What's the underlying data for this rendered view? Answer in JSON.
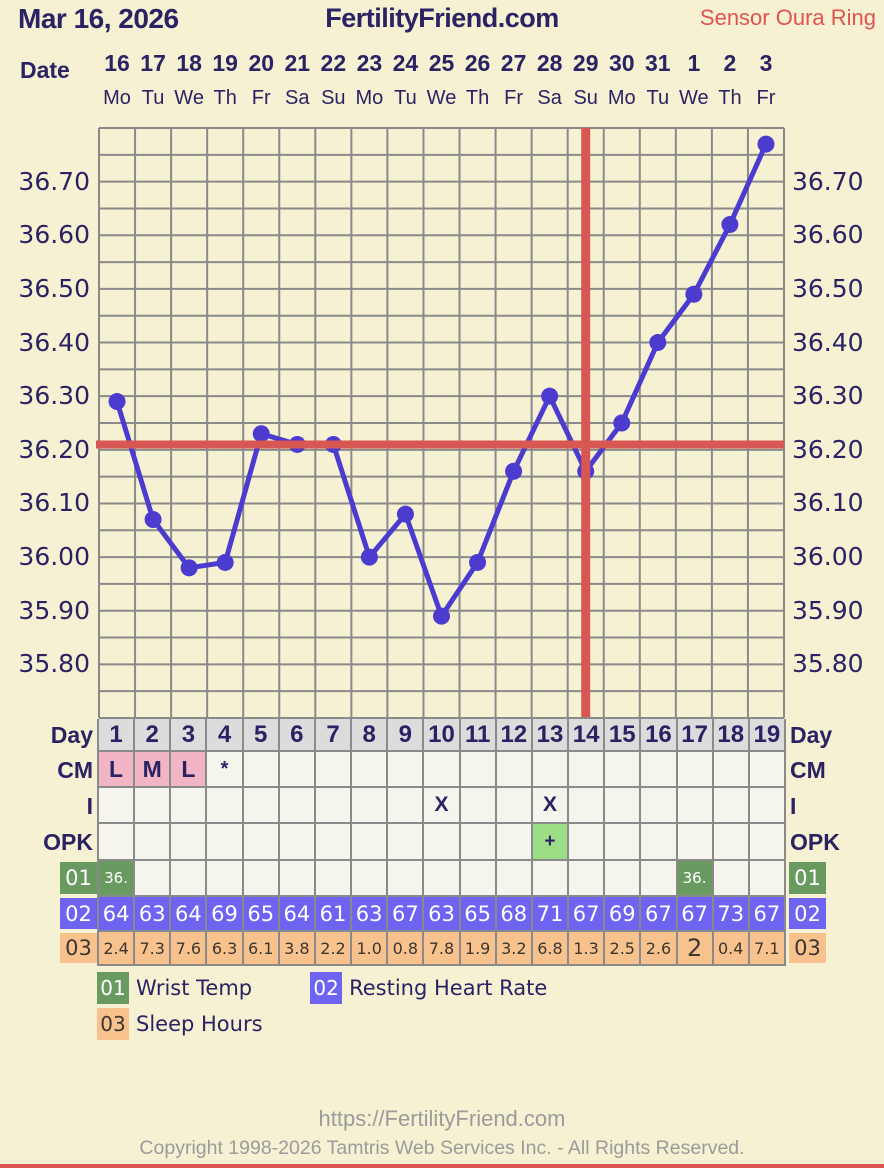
{
  "header": {
    "date": "Mar 16, 2026",
    "site": "FertilityFriend.com",
    "sensor": "Sensor Oura Ring"
  },
  "date_axis": {
    "label": "Date",
    "dates": [
      "16",
      "17",
      "18",
      "19",
      "20",
      "21",
      "22",
      "23",
      "24",
      "25",
      "26",
      "27",
      "28",
      "29",
      "30",
      "31",
      "1",
      "2",
      "3"
    ],
    "weekdays": [
      "Mo",
      "Tu",
      "We",
      "Th",
      "Fr",
      "Sa",
      "Su",
      "Mo",
      "Tu",
      "We",
      "Th",
      "Fr",
      "Sa",
      "Su",
      "Mo",
      "Tu",
      "We",
      "Th",
      "Fr"
    ]
  },
  "chart_data": {
    "type": "line",
    "title": "Basal body temperature chart",
    "x": [
      1,
      2,
      3,
      4,
      5,
      6,
      7,
      8,
      9,
      10,
      11,
      12,
      13,
      14,
      15,
      16,
      17,
      18,
      19
    ],
    "series": [
      {
        "name": "Wrist Temp",
        "values": [
          36.29,
          36.07,
          35.98,
          35.99,
          36.23,
          36.21,
          36.21,
          36.0,
          36.08,
          35.89,
          35.99,
          36.16,
          36.3,
          36.16,
          36.25,
          36.4,
          36.49,
          36.62,
          36.77
        ]
      }
    ],
    "ylim": [
      35.7,
      36.8
    ],
    "ytick_step": 0.05,
    "ylabel_step": 0.1,
    "ylabels": [
      "36.70",
      "36.60",
      "36.50",
      "36.40",
      "36.30",
      "36.20",
      "36.10",
      "36.00",
      "35.90",
      "35.80"
    ],
    "coverline": 36.21,
    "ovulation_day": 14,
    "grid": true,
    "line_color": "#4b3bcf",
    "crosshair_color": "#d85753",
    "grid_color": "#8a8a8a"
  },
  "table": {
    "rows": {
      "day": {
        "label": "Day",
        "values": [
          "1",
          "2",
          "3",
          "4",
          "5",
          "6",
          "7",
          "8",
          "9",
          "10",
          "11",
          "12",
          "13",
          "14",
          "15",
          "16",
          "17",
          "18",
          "19"
        ]
      },
      "cm": {
        "label": "CM",
        "values": [
          "L",
          "M",
          "L",
          "*",
          "",
          "",
          "",
          "",
          "",
          "",
          "",
          "",
          "",
          "",
          "",
          "",
          "",
          "",
          ""
        ]
      },
      "i": {
        "label": "I",
        "values": [
          "",
          "",
          "",
          "",
          "",
          "",
          "",
          "",
          "",
          "X",
          "",
          "",
          "X",
          "",
          "",
          "",
          "",
          "",
          ""
        ]
      },
      "opk": {
        "label": "OPK",
        "values": [
          "",
          "",
          "",
          "",
          "",
          "",
          "",
          "",
          "",
          "",
          "",
          "",
          "+",
          "",
          "",
          "",
          "",
          "",
          ""
        ]
      },
      "r01": {
        "label": "01",
        "values": [
          "36.",
          "",
          "",
          "",
          "",
          "",
          "",
          "",
          "",
          "",
          "",
          "",
          "",
          "",
          "",
          "",
          "36.",
          "",
          ""
        ]
      },
      "r02": {
        "label": "02",
        "values": [
          "64",
          "63",
          "64",
          "69",
          "65",
          "64",
          "61",
          "63",
          "67",
          "63",
          "65",
          "68",
          "71",
          "67",
          "69",
          "67",
          "67",
          "73",
          "67"
        ]
      },
      "r03": {
        "label": "03",
        "values": [
          "2.4",
          "7.3",
          "7.6",
          "6.3",
          "6.1",
          "3.8",
          "2.2",
          "1.0",
          "0.8",
          "7.8",
          "1.9",
          "3.2",
          "6.8",
          "1.3",
          "2.5",
          "2.6",
          "2",
          "0.4",
          "7.1"
        ]
      }
    }
  },
  "legend": {
    "items": [
      {
        "code": "01",
        "label": "Wrist Temp"
      },
      {
        "code": "02",
        "label": "Resting Heart Rate"
      },
      {
        "code": "03",
        "label": "Sleep Hours"
      }
    ]
  },
  "footer": {
    "url": "https://FertilityFriend.com",
    "copyright": "Copyright 1998-2026 Tamtris Web Services Inc. - All Rights Reserved."
  },
  "colors": {
    "background": "#f5f1d2",
    "navy": "#2b2263",
    "grid": "#8a8a8a",
    "temp_line": "#4b3bcf",
    "crosshair": "#d85753",
    "sensor_red": "#e0534e",
    "day_header_bg": "#dcdcdc",
    "cm_pink": "#f2b5c6",
    "opk_green": "#9ddd85",
    "badge_green": "#699a60",
    "badge_blue": "#6e64f1",
    "badge_orange": "#f8c28f",
    "empty_cell": "#f5f5ed",
    "footer_gray": "#9b9b9b"
  }
}
